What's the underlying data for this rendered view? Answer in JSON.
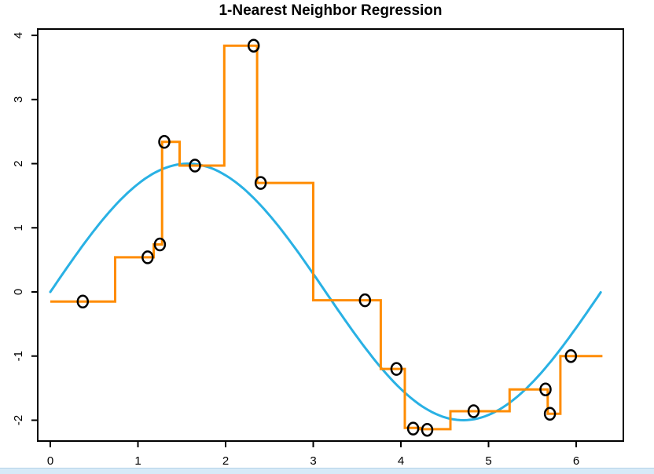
{
  "title": "1-Nearest Neighbor Regression",
  "window": {
    "bottom_strip_color": "#d7eaf8",
    "bottom_strip_edge_color": "#b3d2e8",
    "background_color": "#ffffff"
  },
  "chart_data": {
    "type": "scatter",
    "title": "1-Nearest Neighbor Regression",
    "xlabel": "",
    "ylabel": "",
    "xlim": [
      -0.14,
      6.54
    ],
    "ylim": [
      -2.33,
      4.1
    ],
    "x_ticks": [
      "0",
      "1",
      "2",
      "3",
      "4",
      "5",
      "6"
    ],
    "y_ticks": [
      "-2",
      "-1",
      "0",
      "1",
      "2",
      "3",
      "4"
    ],
    "grid": false,
    "legend_position": "none",
    "axis_color": "#000000",
    "series": [
      {
        "name": "true-function-curve",
        "type": "line",
        "color": "#29b1e4",
        "line_width": 3,
        "description": "y = 2*sin(x)",
        "amplitude": 2,
        "x_start": 0,
        "x_end": 6.3
      },
      {
        "name": "1nn-step-fit",
        "type": "step",
        "color": "#ff8c00",
        "line_width": 3,
        "segments": [
          {
            "x0": 0.0,
            "x1": 0.74,
            "y": -0.15
          },
          {
            "x0": 0.74,
            "x1": 1.18,
            "y": 0.54
          },
          {
            "x0": 1.18,
            "x1": 1.275,
            "y": 0.74
          },
          {
            "x0": 1.275,
            "x1": 1.475,
            "y": 2.34
          },
          {
            "x0": 1.475,
            "x1": 1.985,
            "y": 1.97
          },
          {
            "x0": 1.985,
            "x1": 2.36,
            "y": 3.84
          },
          {
            "x0": 2.36,
            "x1": 3.0,
            "y": 1.7
          },
          {
            "x0": 3.0,
            "x1": 3.77,
            "y": -0.13
          },
          {
            "x0": 3.77,
            "x1": 4.045,
            "y": -1.2
          },
          {
            "x0": 4.045,
            "x1": 4.22,
            "y": -2.12
          },
          {
            "x0": 4.22,
            "x1": 4.565,
            "y": -2.14
          },
          {
            "x0": 4.565,
            "x1": 5.24,
            "y": -1.86
          },
          {
            "x0": 5.24,
            "x1": 5.675,
            "y": -1.52
          },
          {
            "x0": 5.675,
            "x1": 5.82,
            "y": -1.9
          },
          {
            "x0": 5.82,
            "x1": 6.3,
            "y": -1.0
          }
        ]
      },
      {
        "name": "training-points",
        "type": "scatter",
        "marker": "open-circle",
        "color": "#000000",
        "points": [
          [
            0.37,
            -0.15
          ],
          [
            1.11,
            0.54
          ],
          [
            1.25,
            0.74
          ],
          [
            1.3,
            2.34
          ],
          [
            1.65,
            1.97
          ],
          [
            2.32,
            3.84
          ],
          [
            2.4,
            1.7
          ],
          [
            3.59,
            -0.13
          ],
          [
            3.95,
            -1.2
          ],
          [
            4.14,
            -2.13
          ],
          [
            4.3,
            -2.15
          ],
          [
            4.83,
            -1.86
          ],
          [
            5.65,
            -1.52
          ],
          [
            5.7,
            -1.9
          ],
          [
            5.94,
            -1.0
          ]
        ]
      }
    ]
  }
}
